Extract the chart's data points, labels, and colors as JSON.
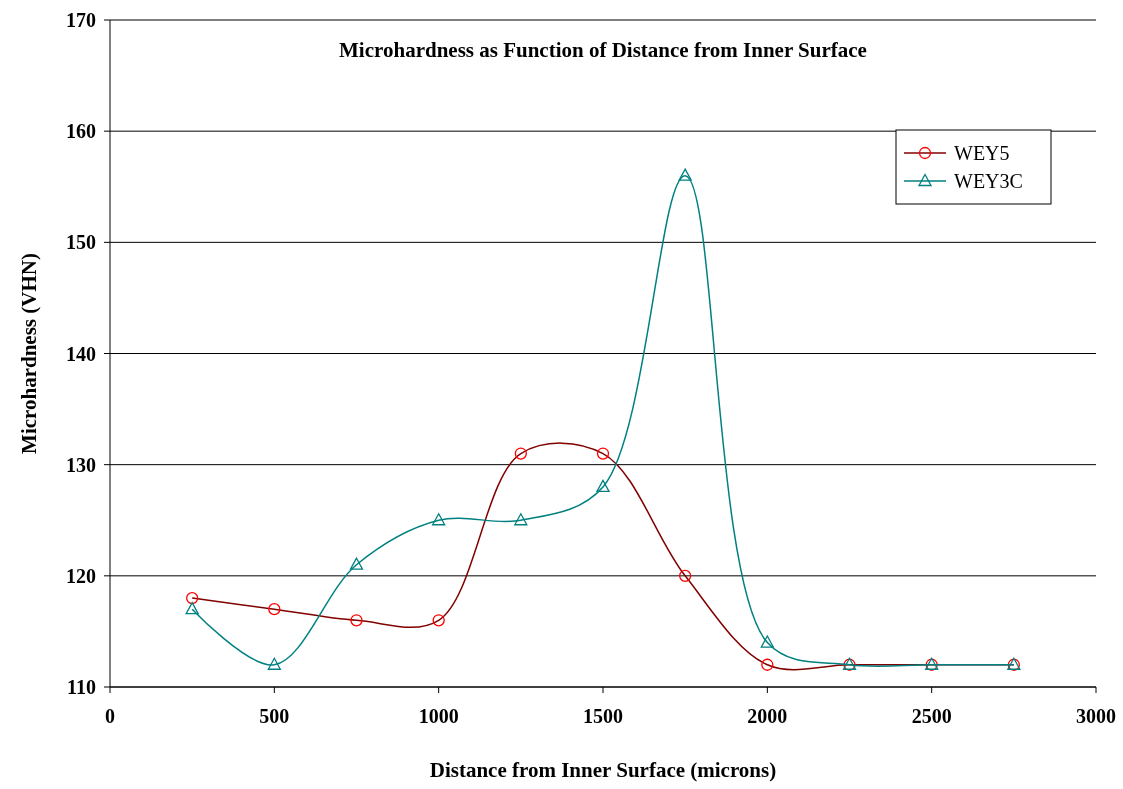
{
  "chart_data": {
    "type": "line",
    "title": "Microhardness as Function of Distance from Inner Surface",
    "xlabel": "Distance from Inner Surface (microns)",
    "ylabel": "Microhardness (VHN)",
    "x": [
      250,
      500,
      750,
      1000,
      1250,
      1500,
      1750,
      2000,
      2250,
      2500,
      2750
    ],
    "xlim": [
      0,
      3000
    ],
    "xticks": [
      0,
      500,
      1000,
      1500,
      2000,
      2500,
      3000
    ],
    "ylim": [
      110,
      170
    ],
    "yticks": [
      110,
      120,
      130,
      140,
      150,
      160,
      170
    ],
    "grid": "y",
    "legend": "top right",
    "line_style": "solid",
    "series": [
      {
        "name": "WEY5",
        "color": "#800000",
        "marker": "circle",
        "values": [
          118,
          117,
          116,
          116,
          131,
          131,
          120,
          112,
          112,
          112,
          112
        ]
      },
      {
        "name": "WEY3C",
        "color": "#008080",
        "marker": "triangle",
        "values": [
          117,
          112,
          121,
          125,
          125,
          128,
          156,
          114,
          112,
          112,
          112
        ]
      }
    ]
  }
}
